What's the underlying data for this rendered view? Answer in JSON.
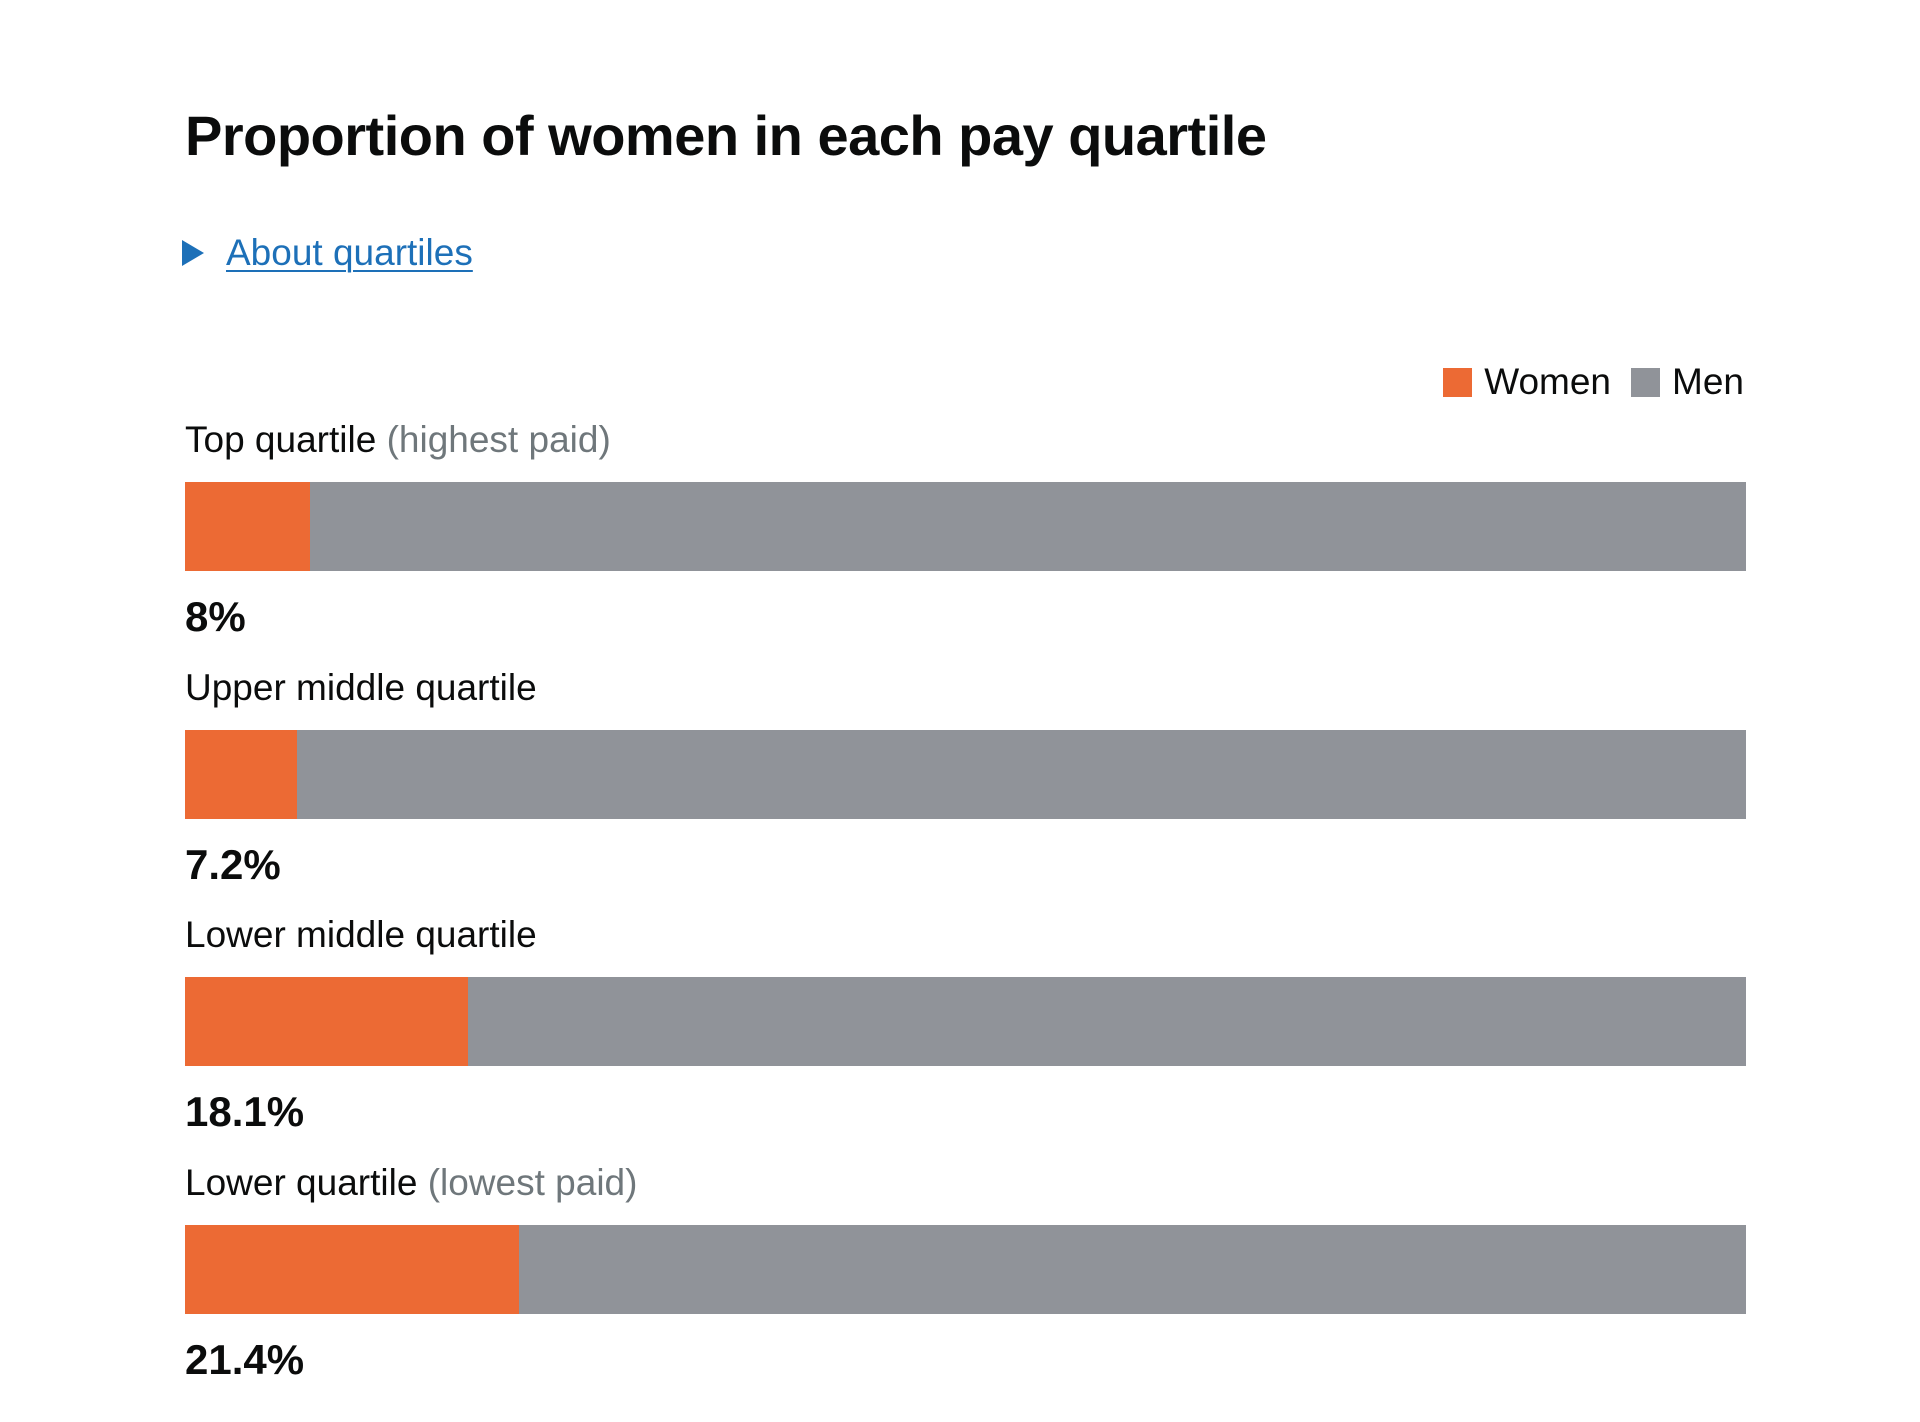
{
  "page": {
    "title": "Proportion of women in each pay quartile",
    "details_link": "About quartiles"
  },
  "colors": {
    "women": "#ec6a34",
    "men": "#909399",
    "link": "#1d70b8",
    "sublabel": "#6f777b"
  },
  "chart_data": {
    "type": "bar",
    "orientation": "horizontal",
    "stacked": true,
    "title": "Proportion of women in each pay quartile",
    "xlim": [
      0,
      100
    ],
    "legend": {
      "placement": "top-right",
      "entries": [
        "Women",
        "Men"
      ]
    },
    "categories": [
      {
        "label": "Top quartile",
        "sublabel": "(highest paid)",
        "value_label": "8%"
      },
      {
        "label": "Upper middle quartile",
        "sublabel": "",
        "value_label": "7.2%"
      },
      {
        "label": "Lower middle quartile",
        "sublabel": "",
        "value_label": "18.1%"
      },
      {
        "label": "Lower quartile",
        "sublabel": "(lowest paid)",
        "value_label": "21.4%"
      }
    ],
    "series": [
      {
        "name": "Women",
        "values": [
          8,
          7.2,
          18.1,
          21.4
        ]
      },
      {
        "name": "Men",
        "values": [
          92,
          92.8,
          81.9,
          78.6
        ]
      }
    ]
  }
}
